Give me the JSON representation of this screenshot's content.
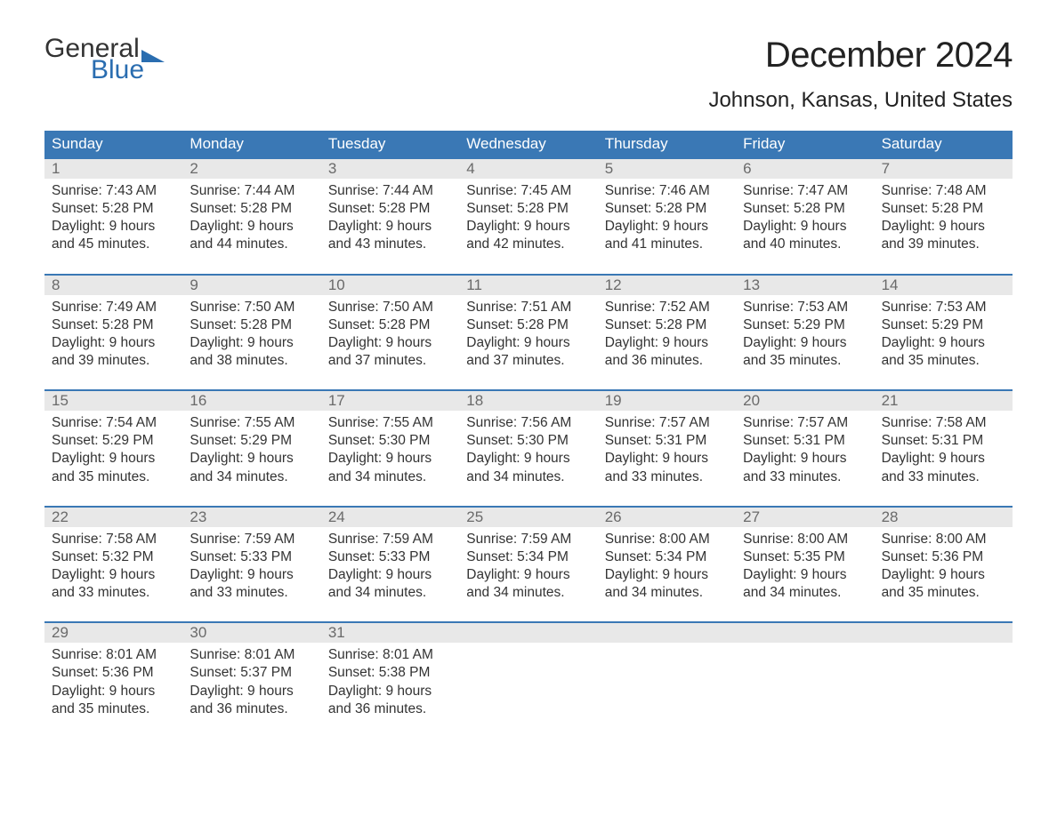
{
  "logo": {
    "word1": "General",
    "word2": "Blue",
    "text_color": "#333333",
    "accent_color": "#2a6db0"
  },
  "title": "December 2024",
  "location": "Johnson, Kansas, United States",
  "style": {
    "header_bg": "#3a78b5",
    "header_text": "#ffffff",
    "daynum_bg": "#e8e8e8",
    "daynum_text": "#6a6a6a",
    "body_text": "#333333",
    "week_border": "#3a78b5",
    "page_bg": "#ffffff",
    "title_fontsize": 40,
    "location_fontsize": 24,
    "header_fontsize": 17,
    "cell_fontsize": 15.5
  },
  "day_names": [
    "Sunday",
    "Monday",
    "Tuesday",
    "Wednesday",
    "Thursday",
    "Friday",
    "Saturday"
  ],
  "weeks": [
    {
      "days": [
        {
          "n": "1",
          "sunrise": "Sunrise: 7:43 AM",
          "sunset": "Sunset: 5:28 PM",
          "d1": "Daylight: 9 hours",
          "d2": "and 45 minutes."
        },
        {
          "n": "2",
          "sunrise": "Sunrise: 7:44 AM",
          "sunset": "Sunset: 5:28 PM",
          "d1": "Daylight: 9 hours",
          "d2": "and 44 minutes."
        },
        {
          "n": "3",
          "sunrise": "Sunrise: 7:44 AM",
          "sunset": "Sunset: 5:28 PM",
          "d1": "Daylight: 9 hours",
          "d2": "and 43 minutes."
        },
        {
          "n": "4",
          "sunrise": "Sunrise: 7:45 AM",
          "sunset": "Sunset: 5:28 PM",
          "d1": "Daylight: 9 hours",
          "d2": "and 42 minutes."
        },
        {
          "n": "5",
          "sunrise": "Sunrise: 7:46 AM",
          "sunset": "Sunset: 5:28 PM",
          "d1": "Daylight: 9 hours",
          "d2": "and 41 minutes."
        },
        {
          "n": "6",
          "sunrise": "Sunrise: 7:47 AM",
          "sunset": "Sunset: 5:28 PM",
          "d1": "Daylight: 9 hours",
          "d2": "and 40 minutes."
        },
        {
          "n": "7",
          "sunrise": "Sunrise: 7:48 AM",
          "sunset": "Sunset: 5:28 PM",
          "d1": "Daylight: 9 hours",
          "d2": "and 39 minutes."
        }
      ]
    },
    {
      "days": [
        {
          "n": "8",
          "sunrise": "Sunrise: 7:49 AM",
          "sunset": "Sunset: 5:28 PM",
          "d1": "Daylight: 9 hours",
          "d2": "and 39 minutes."
        },
        {
          "n": "9",
          "sunrise": "Sunrise: 7:50 AM",
          "sunset": "Sunset: 5:28 PM",
          "d1": "Daylight: 9 hours",
          "d2": "and 38 minutes."
        },
        {
          "n": "10",
          "sunrise": "Sunrise: 7:50 AM",
          "sunset": "Sunset: 5:28 PM",
          "d1": "Daylight: 9 hours",
          "d2": "and 37 minutes."
        },
        {
          "n": "11",
          "sunrise": "Sunrise: 7:51 AM",
          "sunset": "Sunset: 5:28 PM",
          "d1": "Daylight: 9 hours",
          "d2": "and 37 minutes."
        },
        {
          "n": "12",
          "sunrise": "Sunrise: 7:52 AM",
          "sunset": "Sunset: 5:28 PM",
          "d1": "Daylight: 9 hours",
          "d2": "and 36 minutes."
        },
        {
          "n": "13",
          "sunrise": "Sunrise: 7:53 AM",
          "sunset": "Sunset: 5:29 PM",
          "d1": "Daylight: 9 hours",
          "d2": "and 35 minutes."
        },
        {
          "n": "14",
          "sunrise": "Sunrise: 7:53 AM",
          "sunset": "Sunset: 5:29 PM",
          "d1": "Daylight: 9 hours",
          "d2": "and 35 minutes."
        }
      ]
    },
    {
      "days": [
        {
          "n": "15",
          "sunrise": "Sunrise: 7:54 AM",
          "sunset": "Sunset: 5:29 PM",
          "d1": "Daylight: 9 hours",
          "d2": "and 35 minutes."
        },
        {
          "n": "16",
          "sunrise": "Sunrise: 7:55 AM",
          "sunset": "Sunset: 5:29 PM",
          "d1": "Daylight: 9 hours",
          "d2": "and 34 minutes."
        },
        {
          "n": "17",
          "sunrise": "Sunrise: 7:55 AM",
          "sunset": "Sunset: 5:30 PM",
          "d1": "Daylight: 9 hours",
          "d2": "and 34 minutes."
        },
        {
          "n": "18",
          "sunrise": "Sunrise: 7:56 AM",
          "sunset": "Sunset: 5:30 PM",
          "d1": "Daylight: 9 hours",
          "d2": "and 34 minutes."
        },
        {
          "n": "19",
          "sunrise": "Sunrise: 7:57 AM",
          "sunset": "Sunset: 5:31 PM",
          "d1": "Daylight: 9 hours",
          "d2": "and 33 minutes."
        },
        {
          "n": "20",
          "sunrise": "Sunrise: 7:57 AM",
          "sunset": "Sunset: 5:31 PM",
          "d1": "Daylight: 9 hours",
          "d2": "and 33 minutes."
        },
        {
          "n": "21",
          "sunrise": "Sunrise: 7:58 AM",
          "sunset": "Sunset: 5:31 PM",
          "d1": "Daylight: 9 hours",
          "d2": "and 33 minutes."
        }
      ]
    },
    {
      "days": [
        {
          "n": "22",
          "sunrise": "Sunrise: 7:58 AM",
          "sunset": "Sunset: 5:32 PM",
          "d1": "Daylight: 9 hours",
          "d2": "and 33 minutes."
        },
        {
          "n": "23",
          "sunrise": "Sunrise: 7:59 AM",
          "sunset": "Sunset: 5:33 PM",
          "d1": "Daylight: 9 hours",
          "d2": "and 33 minutes."
        },
        {
          "n": "24",
          "sunrise": "Sunrise: 7:59 AM",
          "sunset": "Sunset: 5:33 PM",
          "d1": "Daylight: 9 hours",
          "d2": "and 34 minutes."
        },
        {
          "n": "25",
          "sunrise": "Sunrise: 7:59 AM",
          "sunset": "Sunset: 5:34 PM",
          "d1": "Daylight: 9 hours",
          "d2": "and 34 minutes."
        },
        {
          "n": "26",
          "sunrise": "Sunrise: 8:00 AM",
          "sunset": "Sunset: 5:34 PM",
          "d1": "Daylight: 9 hours",
          "d2": "and 34 minutes."
        },
        {
          "n": "27",
          "sunrise": "Sunrise: 8:00 AM",
          "sunset": "Sunset: 5:35 PM",
          "d1": "Daylight: 9 hours",
          "d2": "and 34 minutes."
        },
        {
          "n": "28",
          "sunrise": "Sunrise: 8:00 AM",
          "sunset": "Sunset: 5:36 PM",
          "d1": "Daylight: 9 hours",
          "d2": "and 35 minutes."
        }
      ]
    },
    {
      "days": [
        {
          "n": "29",
          "sunrise": "Sunrise: 8:01 AM",
          "sunset": "Sunset: 5:36 PM",
          "d1": "Daylight: 9 hours",
          "d2": "and 35 minutes."
        },
        {
          "n": "30",
          "sunrise": "Sunrise: 8:01 AM",
          "sunset": "Sunset: 5:37 PM",
          "d1": "Daylight: 9 hours",
          "d2": "and 36 minutes."
        },
        {
          "n": "31",
          "sunrise": "Sunrise: 8:01 AM",
          "sunset": "Sunset: 5:38 PM",
          "d1": "Daylight: 9 hours",
          "d2": "and 36 minutes."
        },
        {
          "n": "",
          "sunrise": "",
          "sunset": "",
          "d1": "",
          "d2": ""
        },
        {
          "n": "",
          "sunrise": "",
          "sunset": "",
          "d1": "",
          "d2": ""
        },
        {
          "n": "",
          "sunrise": "",
          "sunset": "",
          "d1": "",
          "d2": ""
        },
        {
          "n": "",
          "sunrise": "",
          "sunset": "",
          "d1": "",
          "d2": ""
        }
      ]
    }
  ]
}
